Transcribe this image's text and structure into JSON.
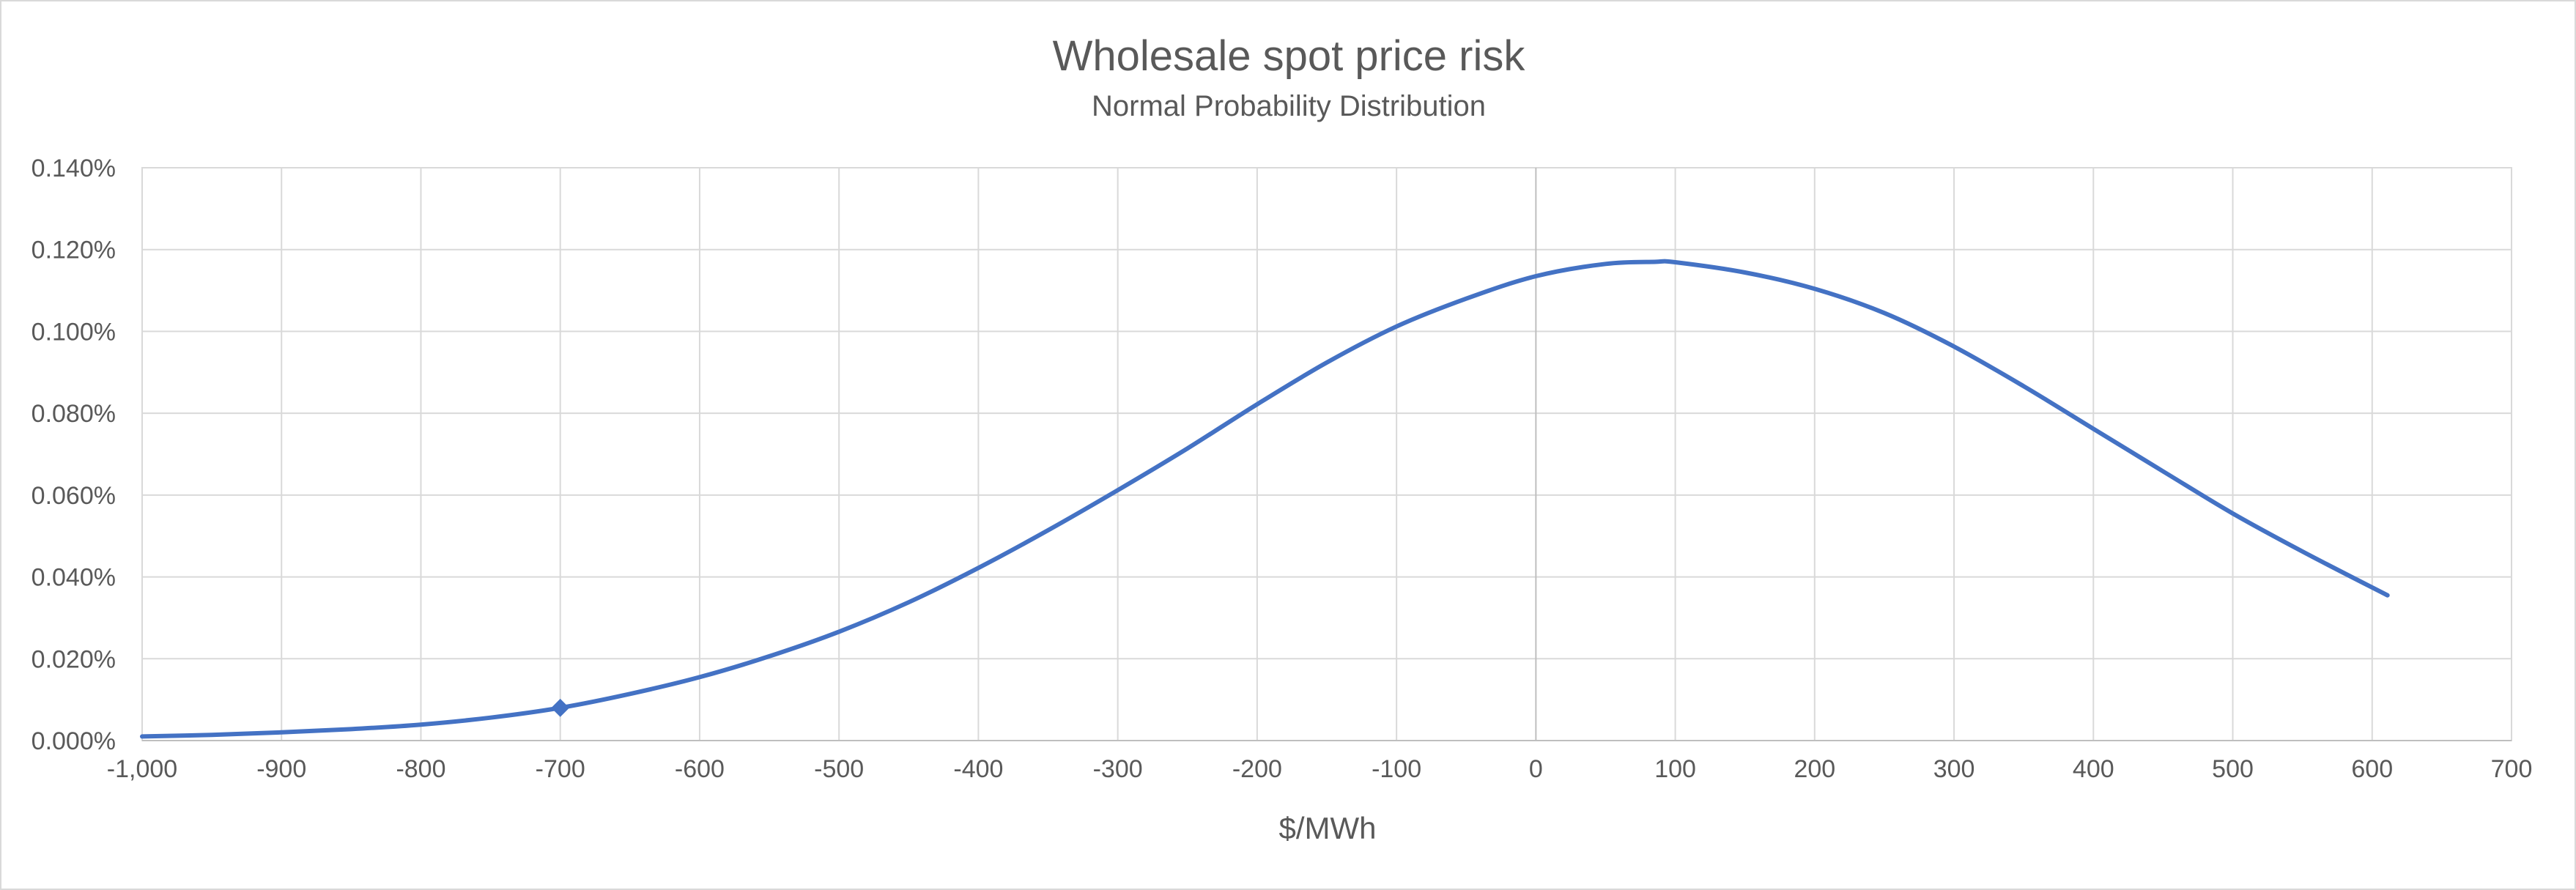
{
  "chart_data": {
    "type": "line",
    "title": "Wholesale spot price risk",
    "subtitle": "Normal Probability Distribution",
    "xlabel": "$/MWh",
    "ylabel": "",
    "xlim": [
      -1000,
      700
    ],
    "ylim": [
      0,
      0.0014
    ],
    "x_ticks": [
      -1000,
      -900,
      -800,
      -700,
      -600,
      -500,
      -400,
      -300,
      -200,
      -100,
      0,
      100,
      200,
      300,
      400,
      500,
      600,
      700
    ],
    "x_tick_labels": [
      "-1,000",
      "-900",
      "-800",
      "-700",
      "-600",
      "-500",
      "-400",
      "-300",
      "-200",
      "-100",
      "0",
      "100",
      "200",
      "300",
      "400",
      "500",
      "600",
      "700"
    ],
    "y_ticks": [
      0,
      0.0002,
      0.0004,
      0.0006,
      0.0008,
      0.001,
      0.0012,
      0.0014
    ],
    "y_tick_labels": [
      "0.000%",
      "0.020%",
      "0.040%",
      "0.060%",
      "0.080%",
      "0.100%",
      "0.120%",
      "0.140%"
    ],
    "grid": true,
    "legend": "none",
    "series": [
      {
        "color": "#4472c4",
        "x": [
          -1000,
          -950,
          -900,
          -850,
          -800,
          -750,
          -700,
          -650,
          -600,
          -550,
          -500,
          -450,
          -400,
          -350,
          -300,
          -250,
          -200,
          -150,
          -100,
          -50,
          0,
          50,
          85,
          100,
          150,
          200,
          250,
          300,
          350,
          400,
          450,
          500,
          550,
          611
        ],
        "y": [
          1e-05,
          1.4e-05,
          2e-05,
          2.8e-05,
          3.9e-05,
          5.6e-05,
          8e-05,
          0.000114,
          0.000155,
          0.000206,
          0.000266,
          0.000338,
          0.000422,
          0.000514,
          0.000612,
          0.000714,
          0.000822,
          0.000924,
          0.001012,
          0.00108,
          0.001135,
          0.001165,
          0.00117,
          0.001169,
          0.001144,
          0.001104,
          0.001045,
          0.000963,
          0.000866,
          0.000762,
          0.000658,
          0.000555,
          0.000462,
          0.000355
        ]
      }
    ],
    "marker_point": {
      "x": -700,
      "y": 8e-05
    }
  }
}
